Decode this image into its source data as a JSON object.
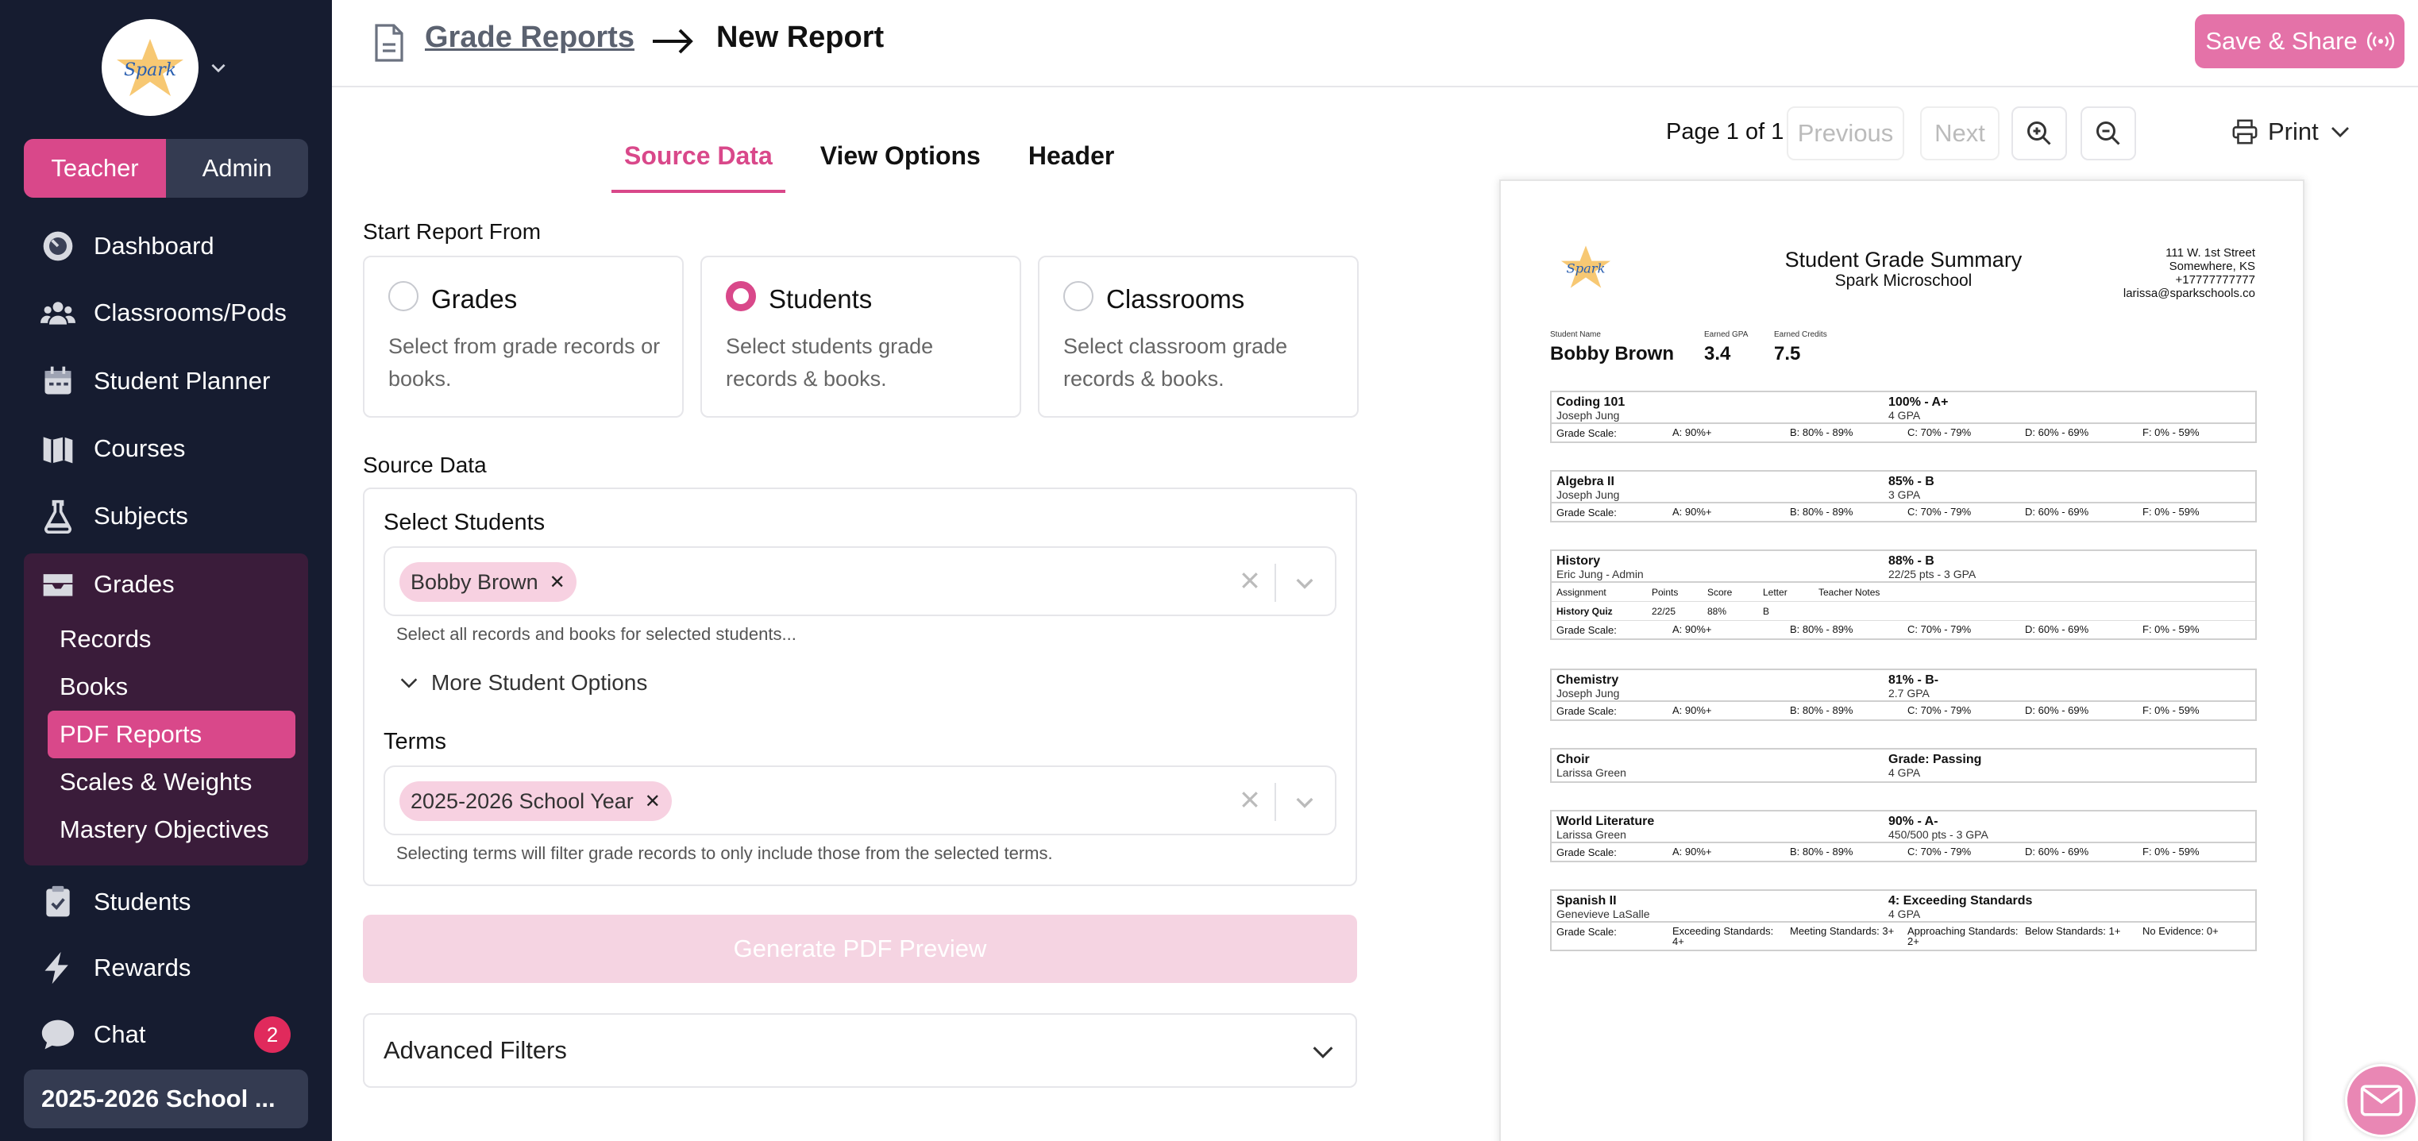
{
  "sidebar": {
    "logo_text": "Spark",
    "roles": [
      "Teacher",
      "Admin"
    ],
    "active_role": "Teacher",
    "nav": [
      {
        "label": "Dashboard",
        "icon": "dashboard-icon"
      },
      {
        "label": "Classrooms/Pods",
        "icon": "users-icon"
      },
      {
        "label": "Student Planner",
        "icon": "calendar-icon"
      },
      {
        "label": "Courses",
        "icon": "map-icon"
      },
      {
        "label": "Subjects",
        "icon": "flask-icon"
      },
      {
        "label": "Grades",
        "icon": "inbox-icon"
      }
    ],
    "grades_sub": [
      "Records",
      "Books",
      "PDF Reports",
      "Scales & Weights",
      "Mastery Objectives"
    ],
    "active_sub": "PDF Reports",
    "bottom_nav": [
      {
        "label": "Students",
        "icon": "clipboard-check-icon"
      },
      {
        "label": "Rewards",
        "icon": "lightning-icon"
      },
      {
        "label": "Chat",
        "icon": "chat-icon"
      }
    ],
    "chat_badge": "2",
    "year_selector": "2025-2026 School ..."
  },
  "header": {
    "breadcrumb_link": "Grade Reports",
    "breadcrumb_current": "New Report",
    "save_label": "Save & Share"
  },
  "tabs": [
    "Source Data",
    "View Options",
    "Header"
  ],
  "active_tab": "Source Data",
  "start_from": {
    "label": "Start Report From",
    "options": [
      {
        "title": "Grades",
        "desc": "Select from grade records or books.",
        "selected": false
      },
      {
        "title": "Students",
        "desc": "Select students grade records & books.",
        "selected": true
      },
      {
        "title": "Classrooms",
        "desc": "Select classroom grade records & books.",
        "selected": false
      }
    ]
  },
  "source": {
    "label": "Source Data",
    "students_label": "Select Students",
    "students_chip": "Bobby Brown",
    "students_help": "Select all records and books for selected students...",
    "more_options": "More Student Options",
    "terms_label": "Terms",
    "terms_chip": "2025-2026 School Year",
    "terms_help": "Selecting terms will filter grade records to only include those from the selected terms."
  },
  "generate_label": "Generate PDF Preview",
  "advanced_label": "Advanced Filters",
  "preview": {
    "page_text": "Page 1 of 1",
    "prev": "Previous",
    "next": "Next",
    "print": "Print"
  },
  "report": {
    "logo_text": "Spark",
    "title": "Student Grade Summary",
    "subtitle": "Spark Microschool",
    "address": [
      "111 W. 1st Street",
      "Somewhere, KS",
      "+17777777777",
      "larissa@sparkschools.co"
    ],
    "labels": {
      "name": "Student Name",
      "gpa": "Earned GPA",
      "credits": "Earned Credits"
    },
    "student": "Bobby Brown",
    "gpa": "3.4",
    "credits": "7.5",
    "scale_label": "Grade Scale:",
    "letter_scale": [
      "A: 90%+",
      "B: 80% - 89%",
      "C: 70% - 79%",
      "D: 60% - 69%",
      "F: 0% - 59%"
    ],
    "mastery_scale": [
      "Exceeding Standards: 4+",
      "Meeting Standards: 3+",
      "Approaching Standards: 2+",
      "Below Standards: 1+",
      "No Evidence: 0+"
    ],
    "assign_headers": [
      "Assignment",
      "Points",
      "Score",
      "Letter",
      "Teacher Notes"
    ],
    "courses": [
      {
        "name": "Coding 101",
        "teacher": "Joseph Jung",
        "grade": "100% - A+",
        "gpa": "4 GPA"
      },
      {
        "name": "Algebra II",
        "teacher": "Joseph Jung",
        "grade": "85% - B",
        "gpa": "3 GPA"
      },
      {
        "name": "History",
        "teacher": "Eric Jung - Admin",
        "grade": "88% - B",
        "gpa": "22/25 pts - 3 GPA",
        "assignment": [
          "History Quiz",
          "22/25",
          "88%",
          "B",
          ""
        ]
      },
      {
        "name": "Chemistry",
        "teacher": "Joseph Jung",
        "grade": "81% - B-",
        "gpa": "2.7 GPA"
      },
      {
        "name": "Choir",
        "teacher": "Larissa Green",
        "grade": "Grade: Passing",
        "gpa": "4 GPA"
      },
      {
        "name": "World Literature",
        "teacher": "Larissa Green",
        "grade": "90% - A-",
        "gpa": "450/500 pts - 3 GPA"
      },
      {
        "name": "Spanish II",
        "teacher": "Genevieve LaSalle",
        "grade": "4: Exceeding Standards",
        "gpa": "4 GPA"
      }
    ]
  }
}
